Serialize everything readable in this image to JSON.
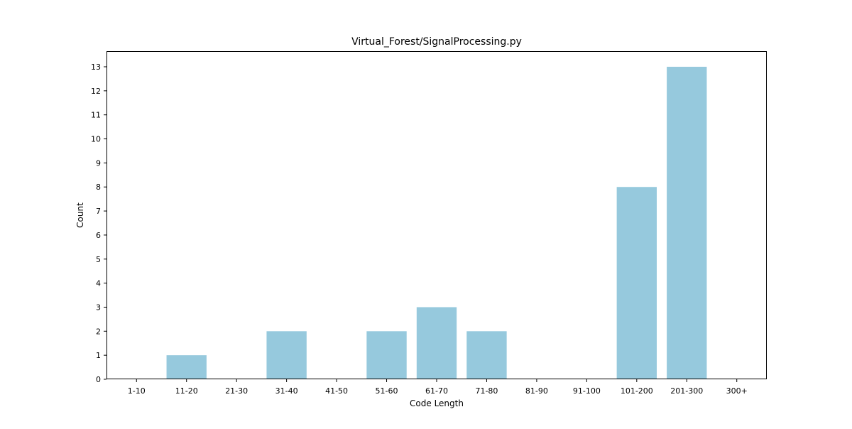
{
  "chart_data": {
    "type": "bar",
    "title": "Virtual_Forest/SignalProcessing.py",
    "xlabel": "Code Length",
    "ylabel": "Count",
    "categories": [
      "1-10",
      "11-20",
      "21-30",
      "31-40",
      "41-50",
      "51-60",
      "61-70",
      "71-80",
      "81-90",
      "91-100",
      "101-200",
      "201-300",
      "300+"
    ],
    "values": [
      0,
      1,
      0,
      2,
      0,
      2,
      3,
      2,
      0,
      0,
      8,
      13,
      0
    ],
    "ylim": [
      0,
      13.65
    ],
    "yticks": [
      0,
      1,
      2,
      3,
      4,
      5,
      6,
      7,
      8,
      9,
      10,
      11,
      12,
      13
    ],
    "grid": false,
    "bar_color": "#96c9dd"
  }
}
